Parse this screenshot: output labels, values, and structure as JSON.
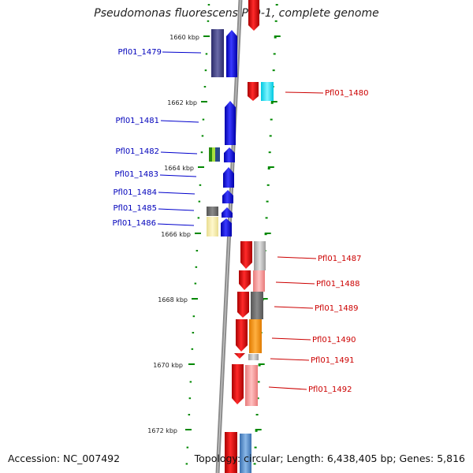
{
  "title": "Pseudomonas fluorescens PfO-1, complete genome",
  "footer": {
    "accession": "Accession: NC_007492",
    "summary": "Topology: circular; Length: 6,438,405 bp; Genes: 5,816"
  },
  "ticks": [
    "1660 kbp",
    "1662 kbp",
    "1664 kbp",
    "1666 kbp",
    "1668 kbp",
    "1670 kbp",
    "1672 kbp"
  ],
  "genes_left": [
    "Pfl01_1479",
    "Pfl01_1481",
    "Pfl01_1482",
    "Pfl01_1483",
    "Pfl01_1484",
    "Pfl01_1485",
    "Pfl01_1486"
  ],
  "genes_right": [
    "Pfl01_1480",
    "Pfl01_1487",
    "Pfl01_1488",
    "Pfl01_1489",
    "Pfl01_1490",
    "Pfl01_1491",
    "Pfl01_1492"
  ],
  "colors": {
    "forward": "#0000ee",
    "reverse": "#ee0000",
    "label_left": "#0000bb",
    "label_right": "#cc0000",
    "backbone": "#888888",
    "tick": "#008800"
  }
}
